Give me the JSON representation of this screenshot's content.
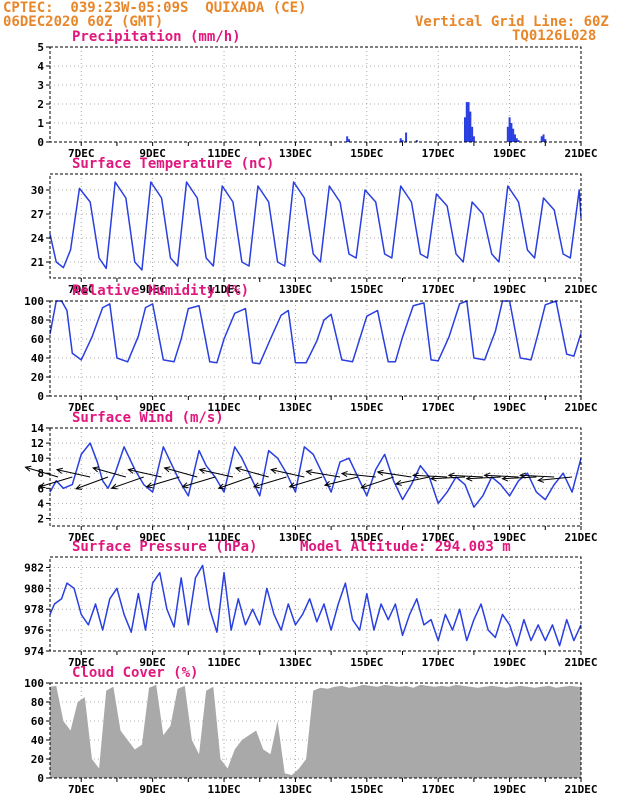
{
  "header": {
    "line1_left": "CPTEC:  039:23W-05:09S  QUIXADA (CE)",
    "line2_left": "06DEC2020 60Z (GMT)",
    "line1_right": "Vertical Grid Line: 60Z",
    "line2_right": "TQ0126L028"
  },
  "colors": {
    "header": "#e8862a",
    "title": "#e0177d",
    "line": "#2a3fe0",
    "bar": "#2a3fe0",
    "cloud": "#a9a9a9"
  },
  "x_axis": {
    "labels": [
      "7DEC",
      "9DEC",
      "11DEC",
      "13DEC",
      "15DEC",
      "17DEC",
      "19DEC",
      "21DEC"
    ],
    "label_day": [
      7,
      9,
      11,
      13,
      15,
      17,
      19,
      21
    ],
    "start_day": 6.125,
    "end_day": 21.0
  },
  "chart_data": [
    {
      "type": "bar",
      "title": "Precipitation (mm/h)",
      "ylim": [
        0,
        5
      ],
      "yticks": [
        0,
        1,
        2,
        3,
        4,
        5
      ],
      "grid": true,
      "x": [
        14.45,
        14.5,
        15.95,
        16.0,
        16.1,
        16.4,
        17.75,
        17.8,
        17.85,
        17.9,
        17.95,
        18.0,
        18.95,
        19.0,
        19.05,
        19.1,
        19.15,
        19.2,
        19.25,
        19.9,
        19.95,
        20.0
      ],
      "values": [
        0.3,
        0.15,
        0.2,
        0.1,
        0.5,
        0.1,
        1.3,
        2.1,
        2.1,
        1.6,
        0.8,
        0.3,
        0.8,
        1.3,
        1.0,
        0.7,
        0.4,
        0.2,
        0.1,
        0.3,
        0.4,
        0.15
      ]
    },
    {
      "type": "line",
      "title": "Surface Temperature (nC)",
      "ylim": [
        19,
        32
      ],
      "yticks": [
        21,
        24,
        27,
        30
      ],
      "grid": true,
      "x": [
        6.125,
        6.3,
        6.5,
        6.7,
        6.95,
        7.25,
        7.5,
        7.7,
        7.95,
        8.25,
        8.5,
        8.7,
        8.95,
        9.25,
        9.5,
        9.7,
        9.95,
        10.25,
        10.5,
        10.7,
        10.95,
        11.25,
        11.5,
        11.7,
        11.95,
        12.25,
        12.5,
        12.7,
        12.95,
        13.25,
        13.5,
        13.7,
        13.95,
        14.25,
        14.5,
        14.7,
        14.95,
        15.25,
        15.5,
        15.7,
        15.95,
        16.25,
        16.5,
        16.7,
        16.95,
        17.25,
        17.5,
        17.7,
        17.95,
        18.25,
        18.5,
        18.7,
        18.95,
        19.25,
        19.5,
        19.7,
        19.95,
        20.25,
        20.5,
        20.7,
        20.95,
        21.0
      ],
      "values": [
        24.5,
        21.0,
        20.3,
        22.5,
        30.2,
        28.5,
        21.5,
        20.2,
        31.0,
        29.0,
        21.0,
        20.0,
        31.0,
        29.0,
        21.5,
        20.5,
        31.0,
        29.0,
        21.5,
        20.5,
        30.5,
        28.5,
        21.0,
        20.5,
        30.5,
        28.5,
        21.0,
        20.5,
        31.0,
        29.0,
        22.0,
        21.0,
        30.5,
        28.5,
        22.0,
        21.5,
        30.0,
        28.5,
        22.0,
        21.5,
        30.5,
        28.5,
        22.0,
        21.5,
        29.5,
        28.0,
        22.0,
        21.0,
        28.5,
        27.0,
        22.0,
        21.0,
        30.5,
        28.5,
        22.5,
        21.5,
        29.0,
        27.5,
        22.0,
        21.5,
        30.0,
        26.5
      ]
    },
    {
      "type": "line",
      "title": "Relative Humidity (%)",
      "ylim": [
        0,
        100
      ],
      "yticks": [
        0,
        20,
        40,
        60,
        80,
        100
      ],
      "grid": true,
      "x": [
        6.125,
        6.3,
        6.45,
        6.6,
        6.75,
        7.0,
        7.3,
        7.6,
        7.8,
        8.0,
        8.3,
        8.6,
        8.8,
        9.0,
        9.3,
        9.6,
        9.8,
        10.0,
        10.3,
        10.6,
        10.8,
        11.0,
        11.3,
        11.6,
        11.8,
        12.0,
        12.3,
        12.6,
        12.8,
        13.0,
        13.3,
        13.6,
        13.8,
        14.0,
        14.3,
        14.6,
        14.8,
        15.0,
        15.3,
        15.6,
        15.8,
        16.0,
        16.3,
        16.6,
        16.8,
        17.0,
        17.3,
        17.6,
        17.8,
        18.0,
        18.3,
        18.6,
        18.8,
        19.0,
        19.3,
        19.6,
        19.8,
        20.0,
        20.3,
        20.6,
        20.8,
        21.0
      ],
      "values": [
        65,
        100,
        100,
        90,
        45,
        38,
        62,
        93,
        97,
        40,
        36,
        63,
        93,
        97,
        38,
        36,
        60,
        92,
        95,
        36,
        35,
        60,
        87,
        92,
        35,
        34,
        60,
        85,
        90,
        35,
        35,
        58,
        80,
        86,
        38,
        36,
        60,
        84,
        90,
        36,
        36,
        62,
        95,
        98,
        38,
        37,
        62,
        97,
        100,
        40,
        38,
        68,
        100,
        100,
        40,
        38,
        66,
        96,
        100,
        44,
        42,
        66
      ]
    },
    {
      "type": "line",
      "title": "Surface Wind (m/s)",
      "ylim": [
        1,
        14
      ],
      "yticks": [
        2,
        4,
        6,
        8,
        10,
        12,
        14
      ],
      "grid": true,
      "x": [
        6.125,
        6.3,
        6.5,
        6.75,
        7.0,
        7.25,
        7.45,
        7.6,
        7.75,
        7.95,
        8.2,
        8.5,
        8.75,
        9.0,
        9.3,
        9.5,
        9.75,
        10.0,
        10.3,
        10.5,
        10.75,
        11.0,
        11.3,
        11.5,
        11.75,
        12.0,
        12.25,
        12.5,
        12.75,
        13.0,
        13.25,
        13.5,
        13.75,
        14.0,
        14.25,
        14.5,
        14.75,
        15.0,
        15.25,
        15.5,
        15.75,
        16.0,
        16.25,
        16.5,
        16.75,
        17.0,
        17.25,
        17.5,
        17.75,
        18.0,
        18.25,
        18.5,
        18.75,
        19.0,
        19.25,
        19.5,
        19.75,
        20.0,
        20.25,
        20.5,
        20.75,
        21.0
      ],
      "values": [
        5.5,
        7.0,
        6.0,
        6.5,
        10.5,
        12.0,
        9.5,
        7.0,
        6.0,
        8.0,
        11.5,
        8.5,
        6.5,
        5.5,
        11.5,
        9.5,
        7.0,
        5.0,
        11.0,
        9.0,
        7.5,
        5.5,
        11.5,
        10.0,
        7.5,
        5.0,
        11.0,
        10.0,
        8.0,
        5.5,
        11.5,
        10.5,
        8.0,
        5.5,
        9.5,
        10.0,
        7.5,
        5.0,
        8.5,
        10.5,
        7.0,
        4.5,
        6.5,
        9.0,
        7.5,
        4.0,
        5.5,
        7.5,
        6.5,
        3.5,
        5.0,
        7.5,
        6.5,
        5.0,
        7.0,
        8.0,
        5.5,
        4.5,
        6.5,
        8.0,
        5.5,
        10.0
      ]
    },
    {
      "type": "line",
      "title": "Surface Pressure (hPa)",
      "annotation": "Model Altitude: 294.003 m",
      "ylim": [
        974,
        983
      ],
      "yticks": [
        974,
        976,
        978,
        980,
        982
      ],
      "grid": true,
      "x": [
        6.125,
        6.25,
        6.45,
        6.6,
        6.8,
        7.0,
        7.2,
        7.4,
        7.6,
        7.8,
        8.0,
        8.2,
        8.4,
        8.6,
        8.8,
        9.0,
        9.2,
        9.4,
        9.6,
        9.8,
        10.0,
        10.2,
        10.4,
        10.6,
        10.8,
        11.0,
        11.2,
        11.4,
        11.6,
        11.8,
        12.0,
        12.2,
        12.4,
        12.6,
        12.8,
        13.0,
        13.2,
        13.4,
        13.6,
        13.8,
        14.0,
        14.2,
        14.4,
        14.6,
        14.8,
        15.0,
        15.2,
        15.4,
        15.6,
        15.8,
        16.0,
        16.2,
        16.4,
        16.6,
        16.8,
        17.0,
        17.2,
        17.4,
        17.6,
        17.8,
        18.0,
        18.2,
        18.4,
        18.6,
        18.8,
        19.0,
        19.2,
        19.4,
        19.6,
        19.8,
        20.0,
        20.2,
        20.4,
        20.6,
        20.8,
        21.0
      ],
      "values": [
        977.5,
        978.5,
        979.0,
        980.5,
        980.0,
        977.5,
        976.5,
        978.5,
        976.0,
        979.0,
        980.0,
        977.5,
        975.8,
        979.5,
        976.0,
        980.5,
        981.5,
        978.0,
        976.3,
        981.0,
        976.5,
        981.0,
        982.2,
        978.0,
        975.8,
        981.5,
        976.0,
        979.0,
        976.5,
        978.0,
        976.5,
        980.0,
        977.5,
        976.0,
        978.5,
        976.5,
        977.5,
        979.0,
        976.8,
        978.5,
        976.0,
        978.5,
        980.5,
        977.0,
        976.0,
        979.5,
        976.0,
        978.5,
        977.0,
        978.5,
        975.5,
        977.5,
        979.0,
        976.5,
        977.0,
        975.0,
        977.5,
        976.0,
        978.0,
        975.0,
        977.0,
        978.5,
        976.0,
        975.3,
        977.5,
        976.5,
        974.5,
        977.0,
        975.0,
        976.5,
        975.0,
        976.5,
        974.5,
        977.0,
        975.0,
        976.5
      ]
    },
    {
      "type": "area",
      "title": "Cloud Cover (%)",
      "ylim": [
        0,
        100
      ],
      "yticks": [
        0,
        20,
        40,
        60,
        80,
        100
      ],
      "grid": true,
      "x": [
        6.125,
        6.3,
        6.5,
        6.7,
        6.9,
        7.1,
        7.3,
        7.5,
        7.7,
        7.9,
        8.1,
        8.3,
        8.5,
        8.7,
        8.9,
        9.1,
        9.3,
        9.5,
        9.7,
        9.9,
        10.1,
        10.3,
        10.5,
        10.7,
        10.9,
        11.1,
        11.3,
        11.5,
        11.7,
        11.9,
        12.1,
        12.3,
        12.5,
        12.7,
        12.9,
        13.1,
        13.3,
        13.5,
        13.7,
        13.9,
        14.1,
        14.3,
        14.5,
        14.7,
        14.9,
        15.1,
        15.3,
        15.5,
        15.7,
        15.9,
        16.1,
        16.3,
        16.5,
        16.7,
        16.9,
        17.1,
        17.3,
        17.5,
        17.7,
        17.9,
        18.1,
        18.3,
        18.5,
        18.7,
        18.9,
        19.1,
        19.3,
        19.5,
        19.7,
        19.9,
        20.1,
        20.3,
        20.5,
        20.7,
        20.9,
        21.0
      ],
      "values": [
        96,
        97,
        60,
        50,
        80,
        85,
        20,
        10,
        92,
        96,
        50,
        40,
        30,
        35,
        95,
        98,
        45,
        55,
        94,
        97,
        40,
        25,
        92,
        96,
        20,
        10,
        30,
        40,
        45,
        50,
        30,
        25,
        60,
        5,
        3,
        10,
        20,
        92,
        95,
        94,
        96,
        97,
        95,
        96,
        98,
        97,
        96,
        98,
        97,
        96,
        97,
        95,
        98,
        97,
        96,
        97,
        96,
        98,
        97,
        96,
        95,
        96,
        97,
        96,
        95,
        96,
        97,
        96,
        95,
        96,
        97,
        95,
        96,
        97,
        96,
        96
      ]
    }
  ],
  "wind_vectors": {
    "x": [
      6.35,
      6.75,
      7.25,
      7.75,
      8.25,
      8.75,
      9.25,
      9.75,
      10.25,
      10.75,
      11.25,
      11.75,
      12.25,
      12.75,
      13.25,
      13.75,
      14.25,
      14.75,
      15.25,
      15.75,
      16.25,
      16.75,
      17.25,
      17.75,
      18.25,
      18.75,
      19.25,
      19.75,
      20.25,
      20.75
    ],
    "u": [
      -1.0,
      -1.0,
      -0.9,
      -0.95,
      -0.9,
      -1.0,
      -0.9,
      -1.0,
      -0.9,
      -1.0,
      -0.9,
      -1.0,
      -0.9,
      -1.0,
      -0.9,
      -1.0,
      -0.9,
      -1.0,
      -0.95,
      -0.9,
      -1.0,
      -0.95,
      -1.0,
      -1.0,
      -1.0,
      -1.0,
      -1.0,
      -1.0,
      -1.0,
      -1.0
    ],
    "v": [
      0.3,
      -0.3,
      0.2,
      -0.35,
      0.25,
      -0.35,
      0.2,
      -0.3,
      0.25,
      -0.3,
      0.2,
      -0.35,
      0.25,
      -0.3,
      0.2,
      -0.3,
      0.15,
      -0.25,
      0.1,
      -0.3,
      0.15,
      -0.2,
      0.05,
      -0.05,
      0.05,
      -0.05,
      0.05,
      -0.05,
      0.05,
      -0.1
    ]
  }
}
